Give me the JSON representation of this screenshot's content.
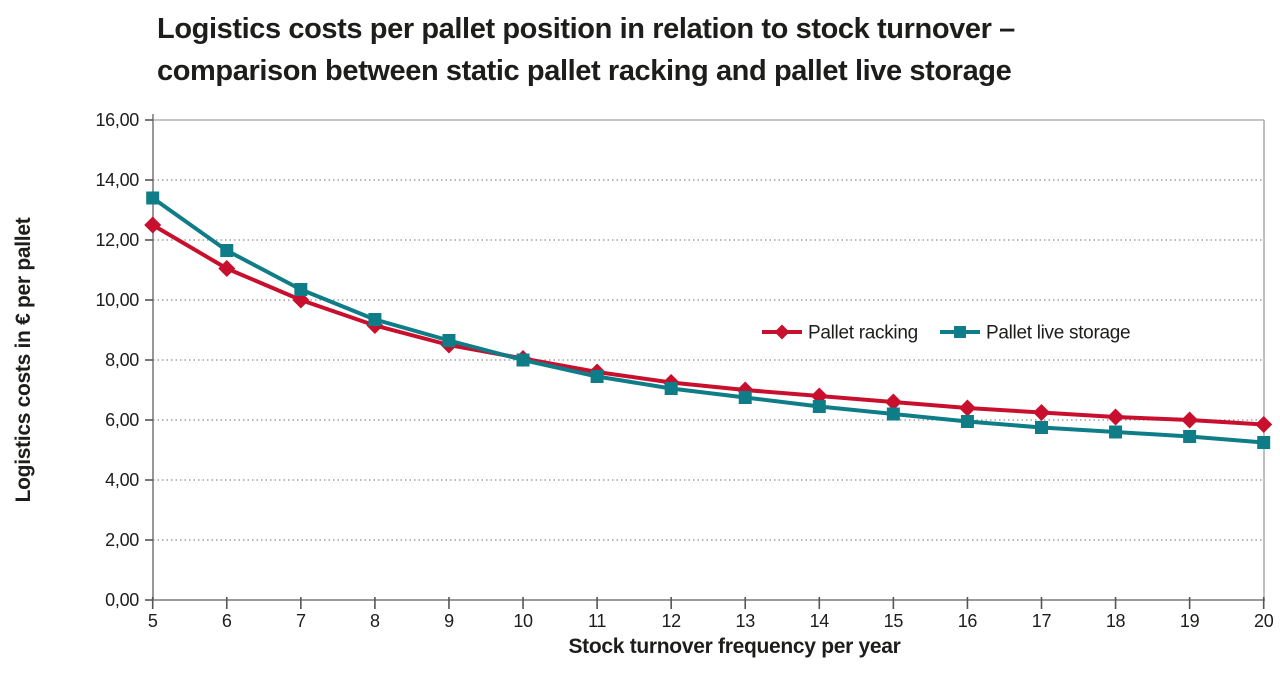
{
  "page": {
    "background": "#ffffff"
  },
  "chart_data": {
    "type": "line",
    "title_lines": [
      "Logistics costs per pallet position in relation to stock turnover –",
      "comparison between static pallet racking and pallet live storage"
    ],
    "xlabel": "Stock turnover frequency per year",
    "ylabel": "Logistics costs in € per pallet",
    "x": [
      5,
      6,
      7,
      8,
      9,
      10,
      11,
      12,
      13,
      14,
      15,
      16,
      17,
      18,
      19,
      20
    ],
    "x_tick_labels": [
      "5",
      "6",
      "7",
      "8",
      "9",
      "10",
      "11",
      "12",
      "13",
      "14",
      "15",
      "16",
      "17",
      "18",
      "19",
      "20"
    ],
    "ylim": [
      0,
      16
    ],
    "ytick_step": 2,
    "y_tick_labels": [
      "0,00",
      "2,00",
      "4,00",
      "6,00",
      "8,00",
      "10,00",
      "12,00",
      "14,00",
      "16,00"
    ],
    "grid": "horizontal-dotted",
    "legend_position": "inside-right-middle",
    "series": [
      {
        "name": "Pallet racking",
        "color": "#c8102e",
        "marker": "diamond",
        "values": [
          12.5,
          11.05,
          10.0,
          9.15,
          8.5,
          8.05,
          7.6,
          7.25,
          7.0,
          6.8,
          6.6,
          6.4,
          6.25,
          6.1,
          6.0,
          5.85
        ]
      },
      {
        "name": "Pallet live storage",
        "color": "#0f7d88",
        "marker": "square",
        "values": [
          13.4,
          11.65,
          10.35,
          9.35,
          8.65,
          8.0,
          7.45,
          7.05,
          6.75,
          6.45,
          6.2,
          5.95,
          5.75,
          5.6,
          5.45,
          5.25
        ]
      }
    ],
    "colors": {
      "title_text": "#1d1d1b",
      "tick_text": "#1d1d1b",
      "axis_line": "#8c8c8c",
      "grid_line": "#8c8c8c",
      "border_line": "#b0b0b0",
      "tick_mark": "#555555"
    }
  }
}
